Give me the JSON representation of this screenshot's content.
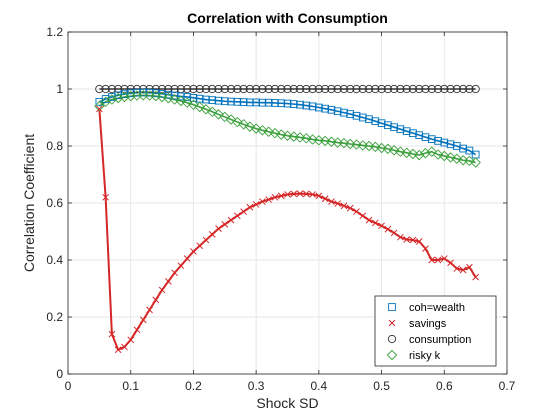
{
  "chart_data": {
    "type": "line",
    "title": "Correlation with Consumption",
    "xlabel": "Shock SD",
    "ylabel": "Correlation Coefficient",
    "xlim": [
      0,
      0.7
    ],
    "ylim": [
      0,
      1.2
    ],
    "xticks": [
      0,
      0.1,
      0.2,
      0.3,
      0.4,
      0.5,
      0.6,
      0.7
    ],
    "xtick_labels": [
      "0",
      "0.1",
      "0.2",
      "0.3",
      "0.4",
      "0.5",
      "0.6",
      "0.7"
    ],
    "yticks": [
      0,
      0.2,
      0.4,
      0.6,
      0.8,
      1.0,
      1.2
    ],
    "ytick_labels": [
      "0",
      "0.2",
      "0.4",
      "0.6",
      "0.8",
      "1",
      "1.2"
    ],
    "grid": true,
    "legend_position": "bottom-right",
    "series": [
      {
        "name": "coh=wealth",
        "color": "#0072BD",
        "marker": "square",
        "points": [
          [
            0.05,
            0.955
          ],
          [
            0.06,
            0.965
          ],
          [
            0.07,
            0.972
          ],
          [
            0.08,
            0.978
          ],
          [
            0.09,
            0.982
          ],
          [
            0.1,
            0.985
          ],
          [
            0.11,
            0.987
          ],
          [
            0.12,
            0.988
          ],
          [
            0.13,
            0.987
          ],
          [
            0.14,
            0.985
          ],
          [
            0.15,
            0.983
          ],
          [
            0.16,
            0.98
          ],
          [
            0.17,
            0.977
          ],
          [
            0.18,
            0.974
          ],
          [
            0.19,
            0.972
          ],
          [
            0.2,
            0.969
          ],
          [
            0.21,
            0.966
          ],
          [
            0.22,
            0.963
          ],
          [
            0.23,
            0.961
          ],
          [
            0.24,
            0.959
          ],
          [
            0.25,
            0.957
          ],
          [
            0.26,
            0.956
          ],
          [
            0.27,
            0.955
          ],
          [
            0.28,
            0.954
          ],
          [
            0.29,
            0.953
          ],
          [
            0.3,
            0.953
          ],
          [
            0.31,
            0.952
          ],
          [
            0.32,
            0.952
          ],
          [
            0.33,
            0.951
          ],
          [
            0.34,
            0.95
          ],
          [
            0.35,
            0.949
          ],
          [
            0.36,
            0.947
          ],
          [
            0.37,
            0.945
          ],
          [
            0.38,
            0.942
          ],
          [
            0.39,
            0.939
          ],
          [
            0.4,
            0.935
          ],
          [
            0.41,
            0.931
          ],
          [
            0.42,
            0.927
          ],
          [
            0.43,
            0.922
          ],
          [
            0.44,
            0.917
          ],
          [
            0.45,
            0.912
          ],
          [
            0.46,
            0.906
          ],
          [
            0.47,
            0.9
          ],
          [
            0.48,
            0.894
          ],
          [
            0.49,
            0.887
          ],
          [
            0.5,
            0.88
          ],
          [
            0.51,
            0.873
          ],
          [
            0.52,
            0.866
          ],
          [
            0.53,
            0.859
          ],
          [
            0.54,
            0.852
          ],
          [
            0.55,
            0.845
          ],
          [
            0.56,
            0.838
          ],
          [
            0.57,
            0.831
          ],
          [
            0.58,
            0.824
          ],
          [
            0.59,
            0.818
          ],
          [
            0.6,
            0.812
          ],
          [
            0.61,
            0.806
          ],
          [
            0.62,
            0.8
          ],
          [
            0.63,
            0.791
          ],
          [
            0.64,
            0.784
          ],
          [
            0.65,
            0.77
          ]
        ]
      },
      {
        "name": "savings",
        "color": "#D95319",
        "marker": "x",
        "points": [
          [
            0.05,
            0.93
          ],
          [
            0.06,
            0.62
          ],
          [
            0.07,
            0.14
          ],
          [
            0.08,
            0.085
          ],
          [
            0.09,
            0.095
          ],
          [
            0.1,
            0.12
          ],
          [
            0.11,
            0.155
          ],
          [
            0.12,
            0.19
          ],
          [
            0.13,
            0.225
          ],
          [
            0.14,
            0.26
          ],
          [
            0.15,
            0.295
          ],
          [
            0.16,
            0.325
          ],
          [
            0.17,
            0.355
          ],
          [
            0.18,
            0.38
          ],
          [
            0.19,
            0.405
          ],
          [
            0.2,
            0.43
          ],
          [
            0.21,
            0.45
          ],
          [
            0.22,
            0.47
          ],
          [
            0.23,
            0.49
          ],
          [
            0.24,
            0.51
          ],
          [
            0.25,
            0.525
          ],
          [
            0.26,
            0.54
          ],
          [
            0.27,
            0.555
          ],
          [
            0.28,
            0.57
          ],
          [
            0.29,
            0.585
          ],
          [
            0.3,
            0.595
          ],
          [
            0.31,
            0.605
          ],
          [
            0.32,
            0.612
          ],
          [
            0.33,
            0.62
          ],
          [
            0.34,
            0.625
          ],
          [
            0.35,
            0.63
          ],
          [
            0.36,
            0.632
          ],
          [
            0.37,
            0.633
          ],
          [
            0.38,
            0.632
          ],
          [
            0.39,
            0.63
          ],
          [
            0.4,
            0.625
          ],
          [
            0.41,
            0.615
          ],
          [
            0.42,
            0.605
          ],
          [
            0.43,
            0.598
          ],
          [
            0.44,
            0.59
          ],
          [
            0.45,
            0.582
          ],
          [
            0.46,
            0.57
          ],
          [
            0.47,
            0.555
          ],
          [
            0.48,
            0.54
          ],
          [
            0.49,
            0.53
          ],
          [
            0.5,
            0.52
          ],
          [
            0.51,
            0.508
          ],
          [
            0.52,
            0.495
          ],
          [
            0.53,
            0.48
          ],
          [
            0.54,
            0.472
          ],
          [
            0.55,
            0.47
          ],
          [
            0.56,
            0.465
          ],
          [
            0.57,
            0.44
          ],
          [
            0.58,
            0.4
          ],
          [
            0.59,
            0.4
          ],
          [
            0.6,
            0.405
          ],
          [
            0.61,
            0.39
          ],
          [
            0.62,
            0.37
          ],
          [
            0.63,
            0.365
          ],
          [
            0.64,
            0.375
          ],
          [
            0.65,
            0.34
          ]
        ]
      },
      {
        "name": "consumption",
        "color": "#333333",
        "marker": "circle",
        "points": [
          [
            0.05,
            1.0
          ],
          [
            0.06,
            1.0
          ],
          [
            0.07,
            1.0
          ],
          [
            0.08,
            1.0
          ],
          [
            0.09,
            1.0
          ],
          [
            0.1,
            1.0
          ],
          [
            0.11,
            1.0
          ],
          [
            0.12,
            1.0
          ],
          [
            0.13,
            1.0
          ],
          [
            0.14,
            1.0
          ],
          [
            0.15,
            1.0
          ],
          [
            0.16,
            1.0
          ],
          [
            0.17,
            1.0
          ],
          [
            0.18,
            1.0
          ],
          [
            0.19,
            1.0
          ],
          [
            0.2,
            1.0
          ],
          [
            0.21,
            1.0
          ],
          [
            0.22,
            1.0
          ],
          [
            0.23,
            1.0
          ],
          [
            0.24,
            1.0
          ],
          [
            0.25,
            1.0
          ],
          [
            0.26,
            1.0
          ],
          [
            0.27,
            1.0
          ],
          [
            0.28,
            1.0
          ],
          [
            0.29,
            1.0
          ],
          [
            0.3,
            1.0
          ],
          [
            0.31,
            1.0
          ],
          [
            0.32,
            1.0
          ],
          [
            0.33,
            1.0
          ],
          [
            0.34,
            1.0
          ],
          [
            0.35,
            1.0
          ],
          [
            0.36,
            1.0
          ],
          [
            0.37,
            1.0
          ],
          [
            0.38,
            1.0
          ],
          [
            0.39,
            1.0
          ],
          [
            0.4,
            1.0
          ],
          [
            0.41,
            1.0
          ],
          [
            0.42,
            1.0
          ],
          [
            0.43,
            1.0
          ],
          [
            0.44,
            1.0
          ],
          [
            0.45,
            1.0
          ],
          [
            0.46,
            1.0
          ],
          [
            0.47,
            1.0
          ],
          [
            0.48,
            1.0
          ],
          [
            0.49,
            1.0
          ],
          [
            0.5,
            1.0
          ],
          [
            0.51,
            1.0
          ],
          [
            0.52,
            1.0
          ],
          [
            0.53,
            1.0
          ],
          [
            0.54,
            1.0
          ],
          [
            0.55,
            1.0
          ],
          [
            0.56,
            1.0
          ],
          [
            0.57,
            1.0
          ],
          [
            0.58,
            1.0
          ],
          [
            0.59,
            1.0
          ],
          [
            0.6,
            1.0
          ],
          [
            0.61,
            1.0
          ],
          [
            0.62,
            1.0
          ],
          [
            0.63,
            1.0
          ],
          [
            0.64,
            1.0
          ],
          [
            0.65,
            1.0
          ]
        ]
      },
      {
        "name": "risky k",
        "color": "#3CA03C",
        "marker": "diamond",
        "points": [
          [
            0.05,
            0.94
          ],
          [
            0.06,
            0.955
          ],
          [
            0.07,
            0.963
          ],
          [
            0.08,
            0.968
          ],
          [
            0.09,
            0.972
          ],
          [
            0.1,
            0.975
          ],
          [
            0.11,
            0.977
          ],
          [
            0.12,
            0.978
          ],
          [
            0.13,
            0.977
          ],
          [
            0.14,
            0.975
          ],
          [
            0.15,
            0.972
          ],
          [
            0.16,
            0.968
          ],
          [
            0.17,
            0.963
          ],
          [
            0.18,
            0.958
          ],
          [
            0.19,
            0.952
          ],
          [
            0.2,
            0.945
          ],
          [
            0.21,
            0.937
          ],
          [
            0.22,
            0.929
          ],
          [
            0.23,
            0.92
          ],
          [
            0.24,
            0.911
          ],
          [
            0.25,
            0.902
          ],
          [
            0.26,
            0.893
          ],
          [
            0.27,
            0.884
          ],
          [
            0.28,
            0.876
          ],
          [
            0.29,
            0.868
          ],
          [
            0.3,
            0.861
          ],
          [
            0.31,
            0.855
          ],
          [
            0.32,
            0.85
          ],
          [
            0.33,
            0.845
          ],
          [
            0.34,
            0.84
          ],
          [
            0.35,
            0.836
          ],
          [
            0.36,
            0.833
          ],
          [
            0.37,
            0.83
          ],
          [
            0.38,
            0.827
          ],
          [
            0.39,
            0.823
          ],
          [
            0.4,
            0.82
          ],
          [
            0.41,
            0.818
          ],
          [
            0.42,
            0.815
          ],
          [
            0.43,
            0.812
          ],
          [
            0.44,
            0.81
          ],
          [
            0.45,
            0.807
          ],
          [
            0.46,
            0.805
          ],
          [
            0.47,
            0.802
          ],
          [
            0.48,
            0.8
          ],
          [
            0.49,
            0.797
          ],
          [
            0.5,
            0.793
          ],
          [
            0.51,
            0.79
          ],
          [
            0.52,
            0.785
          ],
          [
            0.53,
            0.78
          ],
          [
            0.54,
            0.776
          ],
          [
            0.55,
            0.772
          ],
          [
            0.56,
            0.768
          ],
          [
            0.57,
            0.775
          ],
          [
            0.58,
            0.78
          ],
          [
            0.59,
            0.77
          ],
          [
            0.6,
            0.765
          ],
          [
            0.61,
            0.76
          ],
          [
            0.62,
            0.755
          ],
          [
            0.63,
            0.75
          ],
          [
            0.64,
            0.748
          ],
          [
            0.65,
            0.742
          ]
        ]
      }
    ]
  }
}
